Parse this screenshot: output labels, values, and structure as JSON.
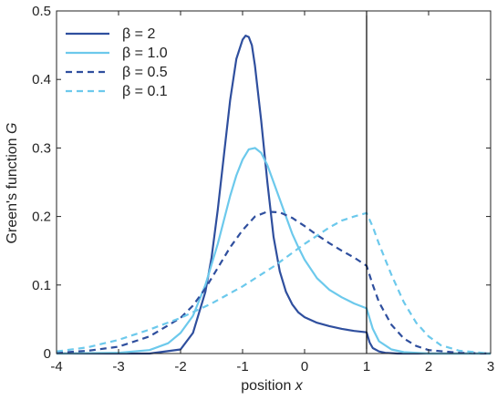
{
  "chart_data": {
    "type": "line",
    "xlabel": "position",
    "xlabel_var": "x",
    "ylabel": "Green's function",
    "ylabel_var": "G",
    "xlim": [
      -4,
      3
    ],
    "ylim": [
      0,
      0.5
    ],
    "xticks": [
      -4,
      -3,
      -2,
      -1,
      0,
      1,
      2,
      3
    ],
    "yticks": [
      0,
      0.1,
      0.2,
      0.3,
      0.4,
      0.5
    ],
    "xtick_labels": [
      "-4",
      "-3",
      "-2",
      "-1",
      "0",
      "1",
      "2",
      "3"
    ],
    "ytick_labels": [
      "0",
      "0.1",
      "0.2",
      "0.3",
      "0.4",
      "0.5"
    ],
    "vline_x": 1,
    "grid": false,
    "legend_position": "top-left",
    "colors": {
      "dark": "#2f4f9e",
      "light": "#6cc9ec",
      "vline": "#000000"
    },
    "series": [
      {
        "name": "β = 2",
        "color": "#2f4f9e",
        "dash": "solid",
        "x": [
          -4,
          -3,
          -2.5,
          -2,
          -1.8,
          -1.6,
          -1.5,
          -1.4,
          -1.3,
          -1.2,
          -1.1,
          -1.0,
          -0.95,
          -0.9,
          -0.85,
          -0.8,
          -0.7,
          -0.6,
          -0.5,
          -0.4,
          -0.3,
          -0.2,
          -0.1,
          0,
          0.2,
          0.4,
          0.6,
          0.8,
          1.0,
          1.05,
          1.1,
          1.2,
          1.3,
          1.5,
          2,
          3
        ],
        "y": [
          0,
          0.0,
          0.0,
          0.006,
          0.03,
          0.09,
          0.14,
          0.21,
          0.29,
          0.37,
          0.43,
          0.458,
          0.464,
          0.462,
          0.45,
          0.42,
          0.34,
          0.25,
          0.17,
          0.12,
          0.09,
          0.072,
          0.06,
          0.053,
          0.045,
          0.04,
          0.036,
          0.033,
          0.031,
          0.016,
          0.008,
          0.003,
          0.001,
          0.0,
          0.0,
          0.0
        ]
      },
      {
        "name": "β = 1.0",
        "color": "#6cc9ec",
        "dash": "solid",
        "x": [
          -4,
          -3,
          -2.5,
          -2.2,
          -2,
          -1.8,
          -1.6,
          -1.4,
          -1.2,
          -1.1,
          -1.0,
          -0.9,
          -0.8,
          -0.7,
          -0.6,
          -0.5,
          -0.4,
          -0.3,
          -0.2,
          -0.1,
          0,
          0.2,
          0.4,
          0.6,
          0.8,
          1.0,
          1.1,
          1.2,
          1.4,
          1.6,
          2,
          3
        ],
        "y": [
          0,
          0.001,
          0.005,
          0.015,
          0.03,
          0.055,
          0.1,
          0.16,
          0.23,
          0.26,
          0.283,
          0.298,
          0.3,
          0.293,
          0.275,
          0.25,
          0.225,
          0.2,
          0.175,
          0.155,
          0.137,
          0.11,
          0.093,
          0.082,
          0.073,
          0.066,
          0.036,
          0.018,
          0.006,
          0.002,
          0.0,
          0.0
        ]
      },
      {
        "name": "β = 0.5",
        "color": "#2f4f9e",
        "dash": "dashed",
        "x": [
          -4,
          -3.5,
          -3,
          -2.5,
          -2,
          -1.8,
          -1.6,
          -1.4,
          -1.2,
          -1.0,
          -0.8,
          -0.6,
          -0.4,
          -0.2,
          0,
          0.2,
          0.4,
          0.6,
          0.8,
          1.0,
          1.1,
          1.2,
          1.4,
          1.6,
          1.8,
          2,
          2.5,
          3
        ],
        "y": [
          0.001,
          0.004,
          0.01,
          0.025,
          0.052,
          0.07,
          0.095,
          0.125,
          0.155,
          0.18,
          0.2,
          0.207,
          0.206,
          0.198,
          0.186,
          0.173,
          0.161,
          0.15,
          0.14,
          0.128,
          0.1,
          0.075,
          0.042,
          0.022,
          0.011,
          0.005,
          0.001,
          0.0
        ]
      },
      {
        "name": "β = 0.1",
        "color": "#6cc9ec",
        "dash": "dashed",
        "x": [
          -4,
          -3.5,
          -3,
          -2.5,
          -2,
          -1.5,
          -1.0,
          -0.5,
          0,
          0.2,
          0.4,
          0.6,
          0.8,
          1.0,
          1.1,
          1.2,
          1.4,
          1.6,
          1.8,
          2.0,
          2.2,
          2.5,
          3
        ],
        "y": [
          0.003,
          0.009,
          0.02,
          0.035,
          0.052,
          0.073,
          0.098,
          0.127,
          0.16,
          0.172,
          0.184,
          0.194,
          0.2,
          0.205,
          0.185,
          0.16,
          0.115,
          0.075,
          0.045,
          0.025,
          0.012,
          0.004,
          0.0
        ]
      }
    ]
  }
}
